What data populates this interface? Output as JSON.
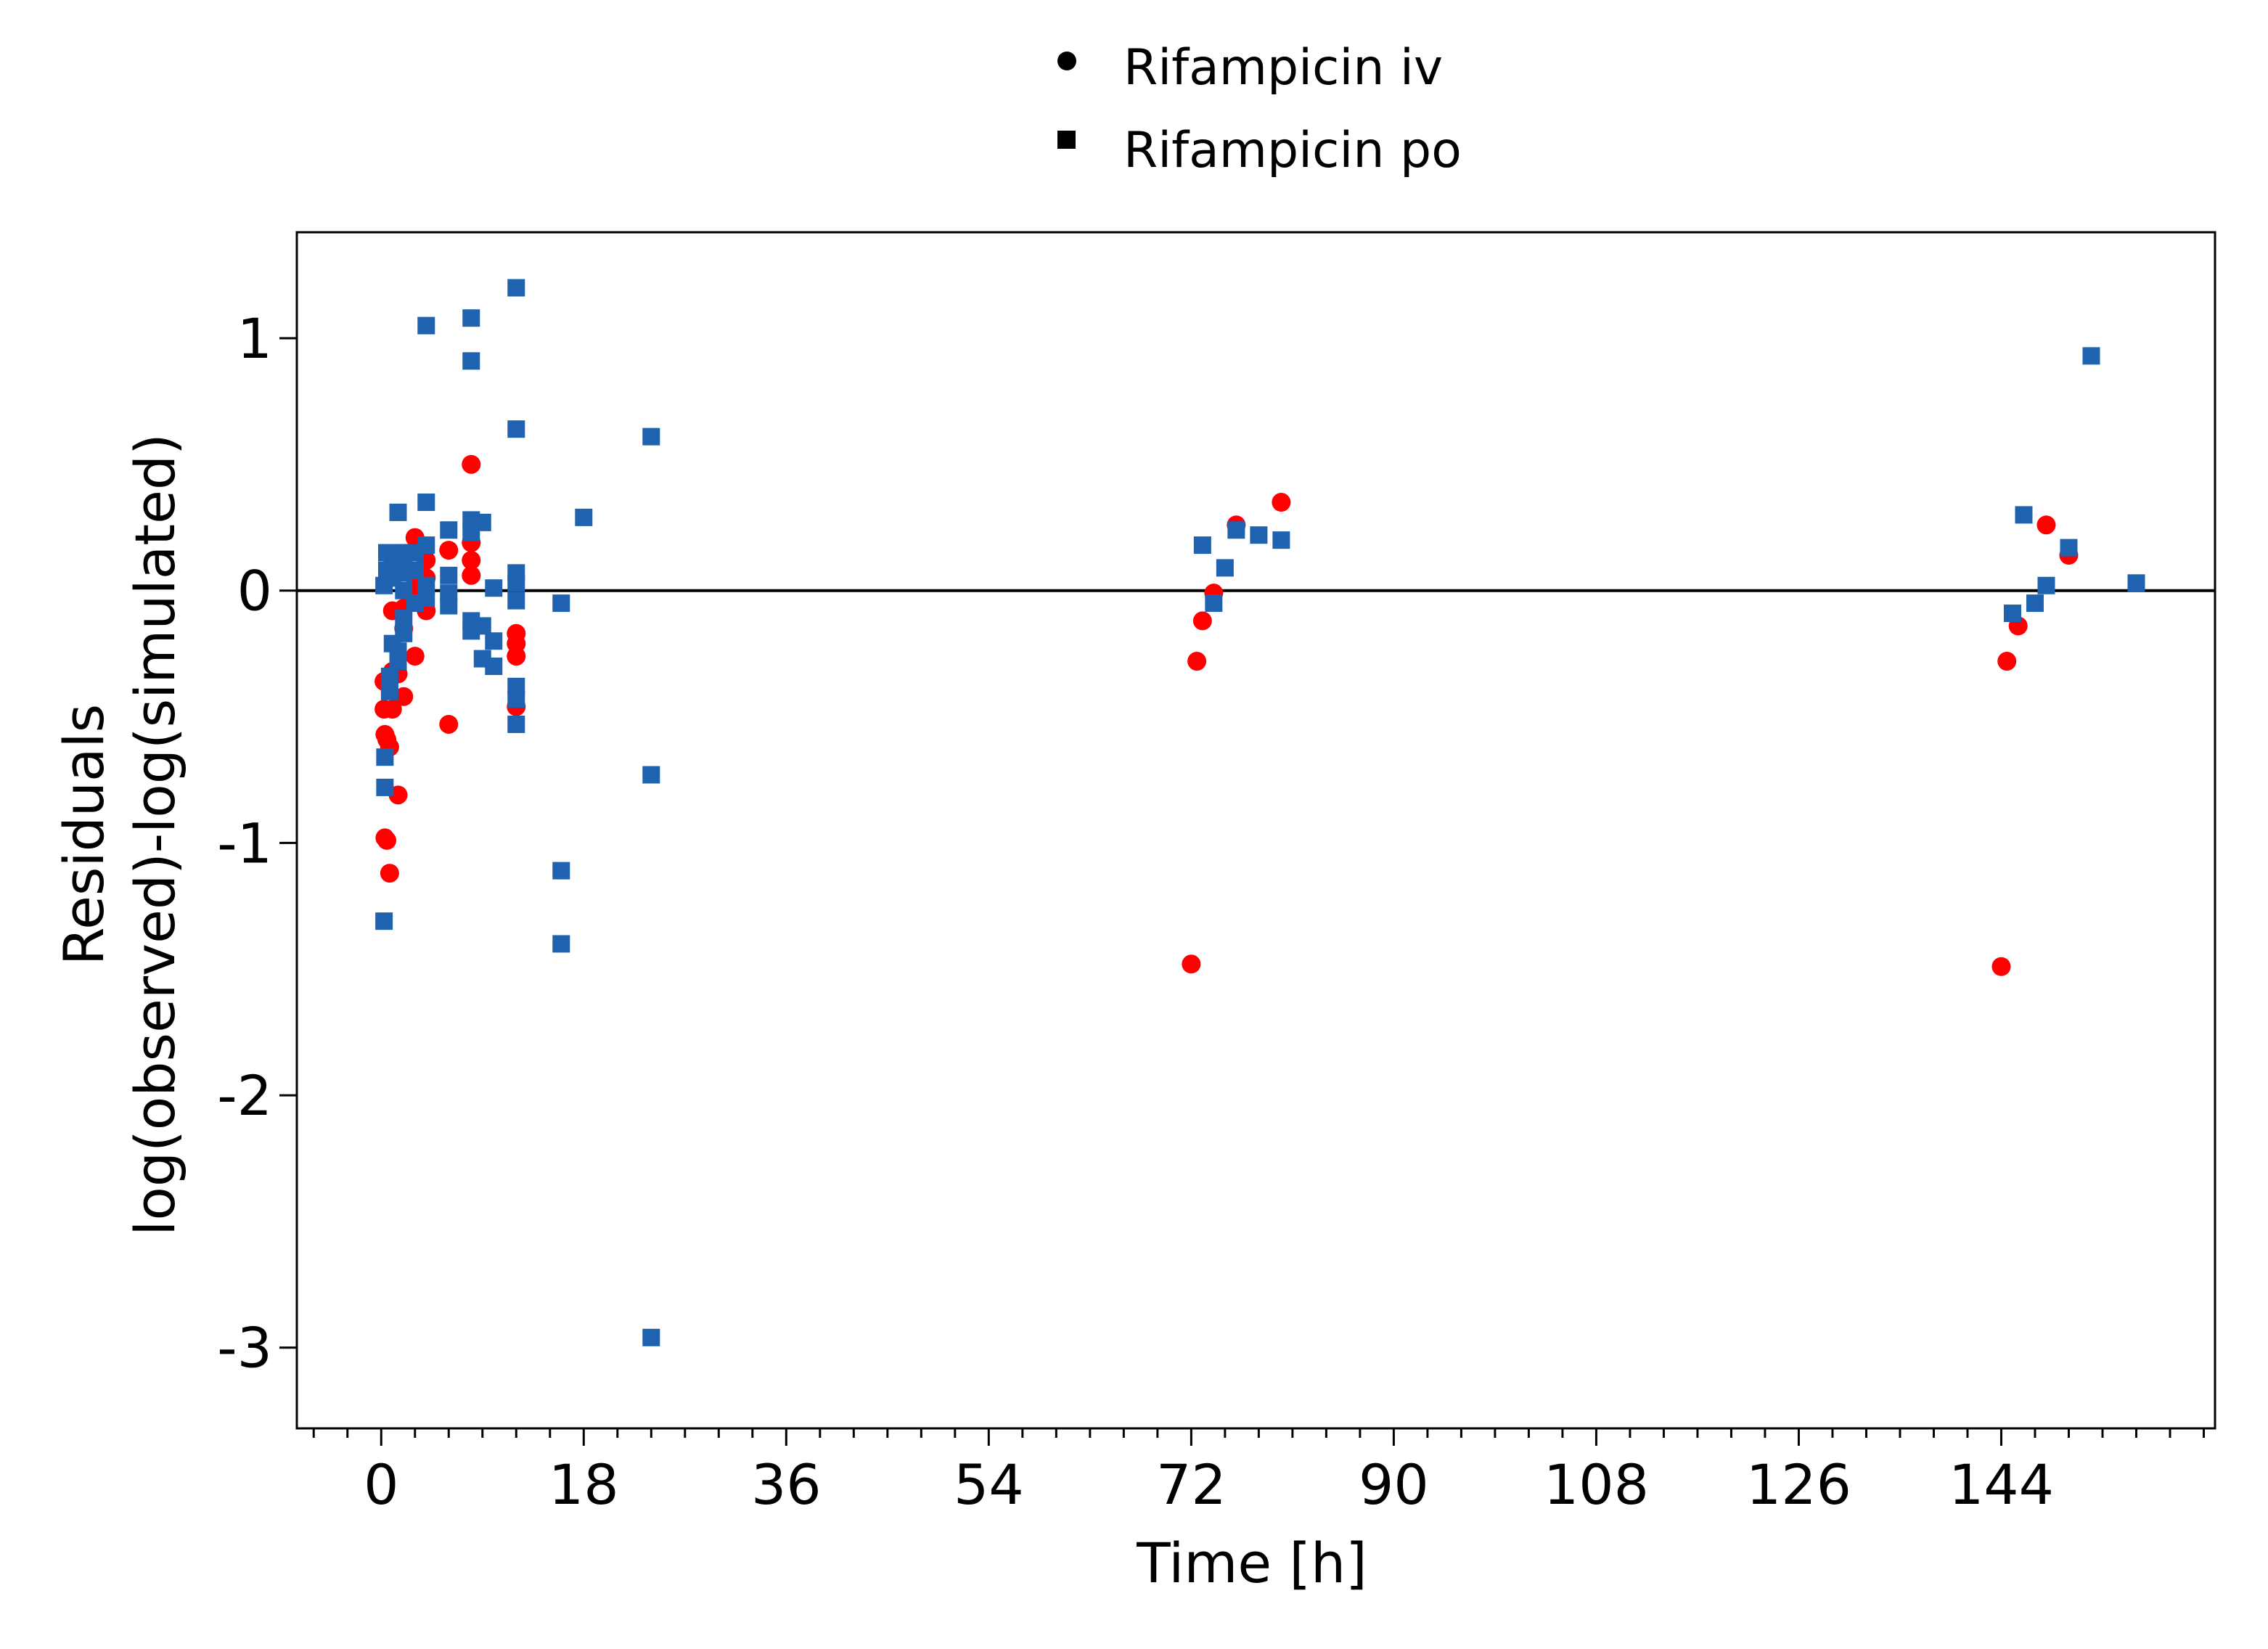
{
  "chart_data": {
    "type": "scatter",
    "title": "",
    "xlabel": "Time [h]",
    "ylabel_lines": [
      "Residuals",
      "log(observed)-log(simulated)"
    ],
    "xlim": [
      -7.5,
      163
    ],
    "ylim": [
      -3.32,
      1.42
    ],
    "x_ticks": [
      0,
      18,
      36,
      54,
      72,
      90,
      108,
      126,
      144
    ],
    "x_tick_labels": [
      "0",
      "18",
      "36",
      "54",
      "72",
      "90",
      "108",
      "126",
      "144"
    ],
    "x_minor_step": 3,
    "y_ticks": [
      1,
      0,
      -1,
      -2,
      -3
    ],
    "y_tick_labels": [
      "1",
      "0",
      "-1",
      "-2",
      "-3"
    ],
    "reference_line_y": 0,
    "grid": false,
    "legend": {
      "placement": "top-center",
      "entries": [
        {
          "label": "Rifampicin iv",
          "marker": "circle",
          "color": "#000000"
        },
        {
          "label": "Rifampicin po",
          "marker": "square",
          "color": "#000000"
        }
      ]
    },
    "series": [
      {
        "marker": "circle",
        "color": "#ff0000",
        "x": [
          0.25,
          0.25,
          0.33,
          0.33,
          0.5,
          0.5,
          0.75,
          0.75,
          1,
          1,
          1,
          1.5,
          1.5,
          2,
          2,
          2,
          3,
          3,
          3,
          4,
          4,
          4,
          6,
          6,
          8,
          8,
          8,
          8,
          12,
          12,
          12,
          12,
          72,
          72.5,
          73,
          74,
          76,
          80,
          144,
          144.5,
          145.5,
          148,
          150
        ],
        "y": [
          -0.36,
          -0.47,
          -0.57,
          -0.98,
          -0.99,
          -0.59,
          -1.12,
          -0.62,
          -0.08,
          -0.32,
          -0.47,
          -0.81,
          -0.33,
          -0.07,
          -0.15,
          -0.42,
          0.21,
          -0.26,
          0.02,
          0.12,
          -0.08,
          0.05,
          0.16,
          -0.53,
          0.5,
          0.19,
          0.12,
          0.06,
          -0.46,
          -0.17,
          -0.21,
          -0.26,
          -1.48,
          -0.28,
          -0.12,
          -0.01,
          0.26,
          0.35,
          -1.49,
          -0.28,
          -0.14,
          0.26,
          0.14
        ]
      },
      {
        "marker": "square",
        "color": "#1f63b0",
        "x": [
          0.25,
          0.25,
          0.33,
          0.33,
          0.5,
          0.5,
          0.75,
          0.75,
          1,
          1,
          1,
          1,
          1.5,
          1.5,
          1.5,
          2,
          2,
          2,
          2,
          2,
          2,
          3,
          3,
          3,
          4,
          4,
          4,
          4,
          4,
          6,
          6,
          6,
          6,
          8,
          8,
          8,
          8,
          8,
          8,
          9,
          9,
          9,
          10,
          10,
          10,
          12,
          12,
          12,
          12,
          12,
          12,
          12,
          12,
          16,
          16,
          16,
          18,
          24,
          24,
          24,
          73,
          74,
          75,
          76,
          78,
          80,
          145,
          146,
          147,
          148,
          150,
          152,
          156
        ],
        "y": [
          -1.31,
          0.02,
          -0.78,
          -0.66,
          0.08,
          0.15,
          -0.34,
          -0.4,
          0.11,
          0.05,
          -0.21,
          0.13,
          0.31,
          -0.24,
          -0.28,
          0.15,
          0.07,
          0.0,
          -0.11,
          -0.17,
          0.12,
          0.15,
          0.08,
          -0.05,
          1.05,
          0.35,
          0.18,
          0.02,
          -0.03,
          0.24,
          0.06,
          -0.01,
          -0.06,
          1.08,
          0.91,
          0.28,
          0.23,
          -0.12,
          -0.16,
          0.27,
          -0.27,
          -0.14,
          0.01,
          -0.2,
          -0.3,
          1.2,
          0.64,
          0.07,
          0.03,
          -0.38,
          -0.43,
          -0.53,
          -0.04,
          -0.05,
          -1.11,
          -1.4,
          0.29,
          0.61,
          -0.73,
          -2.96,
          0.18,
          -0.05,
          0.09,
          0.24,
          0.22,
          0.2,
          -0.09,
          0.3,
          -0.05,
          0.02,
          0.17,
          0.93,
          0.03
        ]
      }
    ]
  }
}
